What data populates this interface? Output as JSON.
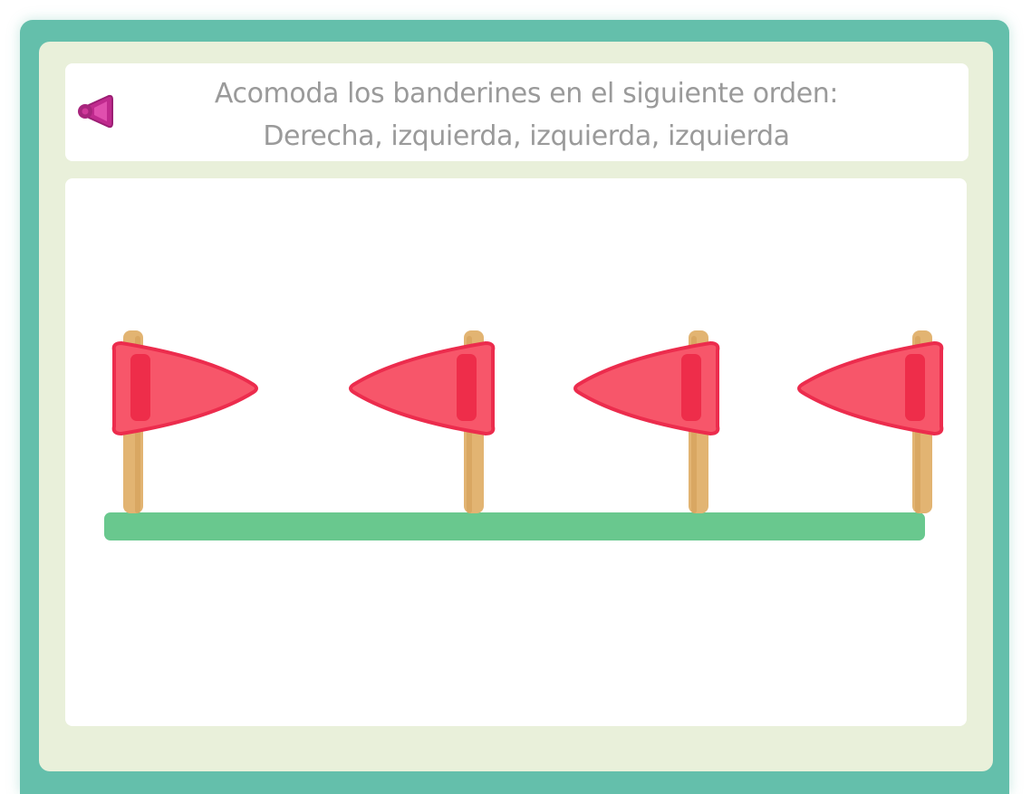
{
  "instruction": {
    "line1": "Acomoda los banderines  en el siguiente orden:",
    "line2": "Derecha, izquierda, izquierda, izquierda"
  },
  "icons": {
    "speaker": "speaker-icon"
  },
  "pennants": [
    {
      "direction": "right"
    },
    {
      "direction": "left"
    },
    {
      "direction": "left"
    },
    {
      "direction": "left"
    }
  ],
  "colors": {
    "frame": "#64bfab",
    "inner_background": "#e9f0da",
    "instruction_text": "#9a9a9a",
    "flag_fill": "#f7566a",
    "flag_stroke": "#ec2c4d",
    "flag_stripe": "#ee2d4a",
    "pole": "#e2b472",
    "ground": "#69c88e",
    "speaker": "#c02a8e"
  }
}
